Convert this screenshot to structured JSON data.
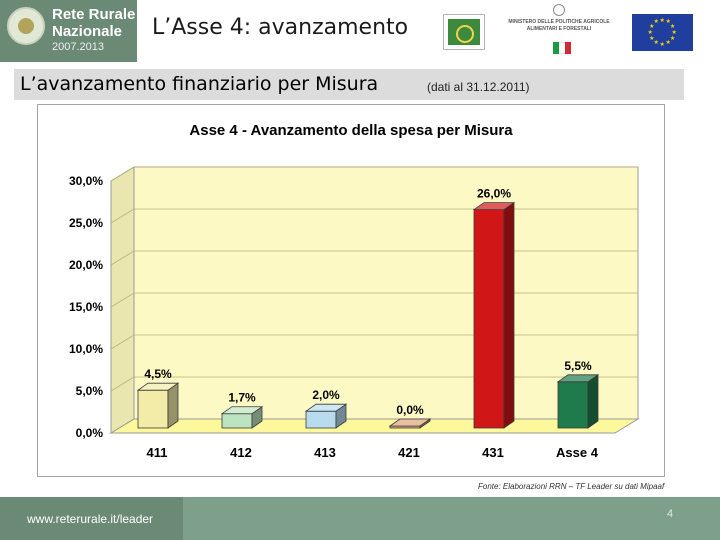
{
  "header": {
    "logo": {
      "line1": "Rete Rurale",
      "line2": "Nazionale",
      "line3": "2007.2013"
    },
    "title": "L’Asse 4: avanzamento",
    "ministry_text": "MINISTERO DELLE POLITICHE AGRICOLE ALIMENTARI E FORESTALI"
  },
  "subtitle": {
    "main": "L’avanzamento finanziario per Misura",
    "note": "(dati al 31.12.2011)"
  },
  "colors": {
    "brand_green": "#6a8a75",
    "footer_green": "#7ea08a",
    "plot_floor": "#fdf89b",
    "plot_wall": "#fcf9c4",
    "italy_flag": [
      "#199a45",
      "#ffffff",
      "#cf2b36"
    ],
    "eu_blue": "#1f3e9e",
    "eu_star": "#f5d400"
  },
  "chart_data": {
    "type": "bar",
    "title": "Asse 4 - Avanzamento della spesa per Misura",
    "categories": [
      "411",
      "412",
      "413",
      "421",
      "431",
      "Asse 4"
    ],
    "values": [
      4.5,
      1.7,
      2.0,
      0.0,
      26.0,
      5.5
    ],
    "data_labels": [
      "4,5%",
      "1,7%",
      "2,0%",
      "0,0%",
      "26,0%",
      "5,5%"
    ],
    "bar_colors": [
      "#f2eca8",
      "#bde4c0",
      "#b8dcee",
      "#e0a77a",
      "#d01616",
      "#1f7a4c"
    ],
    "yticks": [
      "0,0%",
      "5,0%",
      "10,0%",
      "15,0%",
      "20,0%",
      "25,0%",
      "30,0%"
    ],
    "ylim": [
      0,
      30
    ],
    "xlabel": "",
    "ylabel": "",
    "grid": true,
    "three_d": true
  },
  "source": "Fonte: Elaborazioni RRN – TF Leader su dati Mipaaf",
  "footer": {
    "url": "www.reterurale.it/leader",
    "page": "4"
  }
}
